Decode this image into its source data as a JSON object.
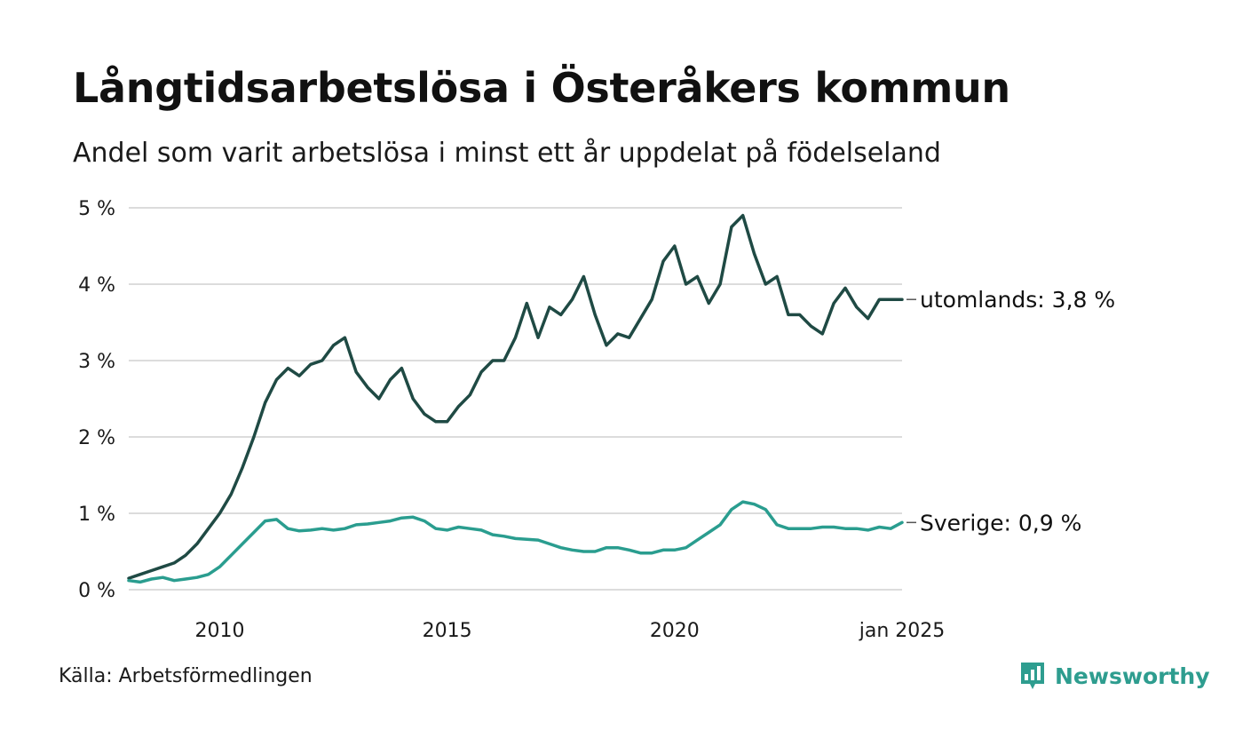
{
  "header": {
    "title": "Långtidsarbetslösa i Österåkers kommun",
    "subtitle": "Andel som varit arbetslösa i minst ett år uppdelat på födelseland"
  },
  "footer": {
    "source": "Källa: Arbetsförmedlingen",
    "brand": "Newsworthy",
    "brand_icon": "bar-chart-bubble-icon"
  },
  "colors": {
    "utomlands": "#1f4a44",
    "sverige": "#2a9d8f",
    "grid": "#dcdcdc",
    "brand": "#2e9d8f"
  },
  "chart_data": {
    "type": "line",
    "title": "Långtidsarbetslösa i Österåkers kommun",
    "subtitle": "Andel som varit arbetslösa i minst ett år uppdelat på födelseland",
    "xlabel": "",
    "ylabel": "",
    "ylim": [
      0,
      5
    ],
    "yticks": [
      0,
      1,
      2,
      3,
      4,
      5
    ],
    "ytick_labels": [
      "0 %",
      "1 %",
      "2 %",
      "3 %",
      "4 %",
      "5 %"
    ],
    "xlim": [
      "2008-01",
      "2025-01"
    ],
    "xticks": [
      "2010-01",
      "2015-01",
      "2020-01",
      "2025-01"
    ],
    "xtick_labels": [
      "2010",
      "2015",
      "2020",
      "jan 2025"
    ],
    "grid": "horizontal",
    "series": [
      {
        "name": "utomlands",
        "end_label": "utomlands: 3,8 %",
        "color": "#1f4a44",
        "points": [
          [
            "2008-01",
            0.15
          ],
          [
            "2008-04",
            0.2
          ],
          [
            "2008-07",
            0.25
          ],
          [
            "2008-10",
            0.3
          ],
          [
            "2009-01",
            0.35
          ],
          [
            "2009-04",
            0.45
          ],
          [
            "2009-07",
            0.6
          ],
          [
            "2009-10",
            0.8
          ],
          [
            "2010-01",
            1.0
          ],
          [
            "2010-04",
            1.25
          ],
          [
            "2010-07",
            1.6
          ],
          [
            "2010-10",
            2.0
          ],
          [
            "2011-01",
            2.45
          ],
          [
            "2011-04",
            2.75
          ],
          [
            "2011-07",
            2.9
          ],
          [
            "2011-10",
            2.8
          ],
          [
            "2012-01",
            2.95
          ],
          [
            "2012-04",
            3.0
          ],
          [
            "2012-07",
            3.2
          ],
          [
            "2012-10",
            3.3
          ],
          [
            "2013-01",
            2.85
          ],
          [
            "2013-04",
            2.65
          ],
          [
            "2013-07",
            2.5
          ],
          [
            "2013-10",
            2.75
          ],
          [
            "2014-01",
            2.9
          ],
          [
            "2014-04",
            2.5
          ],
          [
            "2014-07",
            2.3
          ],
          [
            "2014-10",
            2.2
          ],
          [
            "2015-01",
            2.2
          ],
          [
            "2015-04",
            2.4
          ],
          [
            "2015-07",
            2.55
          ],
          [
            "2015-10",
            2.85
          ],
          [
            "2016-01",
            3.0
          ],
          [
            "2016-04",
            3.0
          ],
          [
            "2016-07",
            3.3
          ],
          [
            "2016-10",
            3.75
          ],
          [
            "2017-01",
            3.3
          ],
          [
            "2017-04",
            3.7
          ],
          [
            "2017-07",
            3.6
          ],
          [
            "2017-10",
            3.8
          ],
          [
            "2018-01",
            4.1
          ],
          [
            "2018-04",
            3.6
          ],
          [
            "2018-07",
            3.2
          ],
          [
            "2018-10",
            3.35
          ],
          [
            "2019-01",
            3.3
          ],
          [
            "2019-04",
            3.55
          ],
          [
            "2019-07",
            3.8
          ],
          [
            "2019-10",
            4.3
          ],
          [
            "2020-01",
            4.5
          ],
          [
            "2020-04",
            4.0
          ],
          [
            "2020-07",
            4.1
          ],
          [
            "2020-10",
            3.75
          ],
          [
            "2021-01",
            4.0
          ],
          [
            "2021-04",
            4.75
          ],
          [
            "2021-07",
            4.9
          ],
          [
            "2021-10",
            4.4
          ],
          [
            "2022-01",
            4.0
          ],
          [
            "2022-04",
            4.1
          ],
          [
            "2022-07",
            3.6
          ],
          [
            "2022-10",
            3.6
          ],
          [
            "2023-01",
            3.45
          ],
          [
            "2023-04",
            3.35
          ],
          [
            "2023-07",
            3.75
          ],
          [
            "2023-10",
            3.95
          ],
          [
            "2024-01",
            3.7
          ],
          [
            "2024-04",
            3.55
          ],
          [
            "2024-07",
            3.8
          ],
          [
            "2024-10",
            3.8
          ],
          [
            "2025-01",
            3.8
          ]
        ]
      },
      {
        "name": "Sverige",
        "end_label": "Sverige: 0,9 %",
        "color": "#2a9d8f",
        "points": [
          [
            "2008-01",
            0.12
          ],
          [
            "2008-04",
            0.1
          ],
          [
            "2008-07",
            0.14
          ],
          [
            "2008-10",
            0.16
          ],
          [
            "2009-01",
            0.12
          ],
          [
            "2009-04",
            0.14
          ],
          [
            "2009-07",
            0.16
          ],
          [
            "2009-10",
            0.2
          ],
          [
            "2010-01",
            0.3
          ],
          [
            "2010-04",
            0.45
          ],
          [
            "2010-07",
            0.6
          ],
          [
            "2010-10",
            0.75
          ],
          [
            "2011-01",
            0.9
          ],
          [
            "2011-04",
            0.92
          ],
          [
            "2011-07",
            0.8
          ],
          [
            "2011-10",
            0.77
          ],
          [
            "2012-01",
            0.78
          ],
          [
            "2012-04",
            0.8
          ],
          [
            "2012-07",
            0.78
          ],
          [
            "2012-10",
            0.8
          ],
          [
            "2013-01",
            0.85
          ],
          [
            "2013-04",
            0.86
          ],
          [
            "2013-07",
            0.88
          ],
          [
            "2013-10",
            0.9
          ],
          [
            "2014-01",
            0.94
          ],
          [
            "2014-04",
            0.95
          ],
          [
            "2014-07",
            0.9
          ],
          [
            "2014-10",
            0.8
          ],
          [
            "2015-01",
            0.78
          ],
          [
            "2015-04",
            0.82
          ],
          [
            "2015-07",
            0.8
          ],
          [
            "2015-10",
            0.78
          ],
          [
            "2016-01",
            0.72
          ],
          [
            "2016-04",
            0.7
          ],
          [
            "2016-07",
            0.67
          ],
          [
            "2016-10",
            0.66
          ],
          [
            "2017-01",
            0.65
          ],
          [
            "2017-04",
            0.6
          ],
          [
            "2017-07",
            0.55
          ],
          [
            "2017-10",
            0.52
          ],
          [
            "2018-01",
            0.5
          ],
          [
            "2018-04",
            0.5
          ],
          [
            "2018-07",
            0.55
          ],
          [
            "2018-10",
            0.55
          ],
          [
            "2019-01",
            0.52
          ],
          [
            "2019-04",
            0.48
          ],
          [
            "2019-07",
            0.48
          ],
          [
            "2019-10",
            0.52
          ],
          [
            "2020-01",
            0.52
          ],
          [
            "2020-04",
            0.55
          ],
          [
            "2020-07",
            0.65
          ],
          [
            "2020-10",
            0.75
          ],
          [
            "2021-01",
            0.85
          ],
          [
            "2021-04",
            1.05
          ],
          [
            "2021-07",
            1.15
          ],
          [
            "2021-10",
            1.12
          ],
          [
            "2022-01",
            1.05
          ],
          [
            "2022-04",
            0.85
          ],
          [
            "2022-07",
            0.8
          ],
          [
            "2022-10",
            0.8
          ],
          [
            "2023-01",
            0.8
          ],
          [
            "2023-04",
            0.82
          ],
          [
            "2023-07",
            0.82
          ],
          [
            "2023-10",
            0.8
          ],
          [
            "2024-01",
            0.8
          ],
          [
            "2024-04",
            0.78
          ],
          [
            "2024-07",
            0.82
          ],
          [
            "2024-10",
            0.8
          ],
          [
            "2025-01",
            0.88
          ]
        ]
      }
    ]
  }
}
